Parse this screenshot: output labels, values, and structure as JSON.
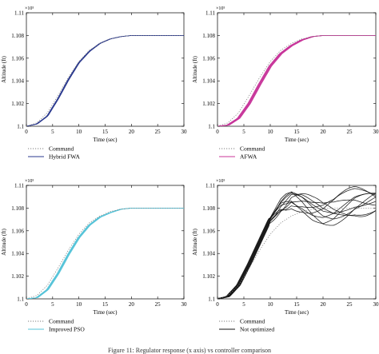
{
  "caption": "Figure 11: Regulator response (x axis) vs controller comparison",
  "chart_data": [
    {
      "type": "line",
      "panel": "top-left",
      "xlabel": "Time (sec)",
      "ylabel": "Altitude (ft)",
      "exponent": "×10⁵",
      "xlim": [
        0,
        30
      ],
      "ylim": [
        1.1,
        1.11
      ],
      "xticks": [
        0,
        5,
        10,
        15,
        20,
        25,
        30
      ],
      "yticks": [
        1.1,
        1.102,
        1.104,
        1.106,
        1.108,
        1.11
      ],
      "legend_position": "bottom-left",
      "series": [
        {
          "name": "Command",
          "style": "dotted",
          "color": "#7f7f7f",
          "kind": "command",
          "x": [
            0,
            2,
            4,
            6,
            8,
            10,
            12,
            14,
            16,
            18,
            20,
            22,
            24,
            26,
            28,
            30
          ],
          "y": [
            1.1,
            1.1003,
            1.1012,
            1.1027,
            1.1043,
            1.1057,
            1.1067,
            1.1073,
            1.1077,
            1.1079,
            1.108,
            1.108,
            1.108,
            1.108,
            1.108,
            1.108
          ]
        },
        {
          "name": "Hybrid FWA",
          "style": "solid",
          "color": "#2b3a8f",
          "kind": "bundle",
          "count": 8,
          "spread": 0.25,
          "x": [
            0,
            2,
            4,
            6,
            8,
            10,
            12,
            14,
            16,
            18,
            20,
            22,
            24,
            26,
            28,
            30
          ],
          "y": [
            1.1,
            1.1002,
            1.1009,
            1.1024,
            1.1041,
            1.1056,
            1.1066,
            1.1073,
            1.1077,
            1.1079,
            1.108,
            1.108,
            1.108,
            1.108,
            1.108,
            1.108
          ]
        }
      ]
    },
    {
      "type": "line",
      "panel": "top-right",
      "xlabel": "Time (sec)",
      "ylabel": "Altitude (ft)",
      "exponent": "×10⁵",
      "xlim": [
        0,
        30
      ],
      "ylim": [
        1.1,
        1.11
      ],
      "xticks": [
        0,
        5,
        10,
        15,
        20,
        25,
        30
      ],
      "yticks": [
        1.1,
        1.102,
        1.104,
        1.106,
        1.108,
        1.11
      ],
      "legend_position": "bottom-left",
      "series": [
        {
          "name": "Command",
          "style": "dotted",
          "color": "#7f7f7f",
          "kind": "command",
          "x": [
            0,
            2,
            4,
            6,
            8,
            10,
            12,
            14,
            16,
            18,
            20,
            22,
            24,
            26,
            28,
            30
          ],
          "y": [
            1.1,
            1.1003,
            1.1012,
            1.1027,
            1.1043,
            1.1057,
            1.1067,
            1.1073,
            1.1077,
            1.1079,
            1.108,
            1.108,
            1.108,
            1.108,
            1.108,
            1.108
          ]
        },
        {
          "name": "AFWA",
          "style": "solid",
          "color": "#c8359a",
          "kind": "bundle",
          "count": 12,
          "spread": 0.55,
          "x": [
            0,
            2,
            4,
            6,
            8,
            10,
            12,
            14,
            16,
            18,
            20,
            22,
            24,
            26,
            28,
            30
          ],
          "y": [
            1.1,
            1.1001,
            1.1007,
            1.102,
            1.1037,
            1.1053,
            1.1064,
            1.1071,
            1.1076,
            1.1079,
            1.108,
            1.108,
            1.108,
            1.108,
            1.108,
            1.108
          ]
        }
      ]
    },
    {
      "type": "line",
      "panel": "bottom-left",
      "xlabel": "Time (sec)",
      "ylabel": "Altitude (ft)",
      "exponent": "×10⁵",
      "xlim": [
        0,
        30
      ],
      "ylim": [
        1.1,
        1.11
      ],
      "xticks": [
        0,
        5,
        10,
        15,
        20,
        25,
        30
      ],
      "yticks": [
        1.1,
        1.102,
        1.104,
        1.106,
        1.108,
        1.11
      ],
      "legend_position": "bottom-left",
      "series": [
        {
          "name": "Command",
          "style": "dotted",
          "color": "#7f7f7f",
          "kind": "command",
          "x": [
            0,
            2,
            4,
            6,
            8,
            10,
            12,
            14,
            16,
            18,
            20,
            22,
            24,
            26,
            28,
            30
          ],
          "y": [
            1.1,
            1.1003,
            1.1012,
            1.1027,
            1.1043,
            1.1057,
            1.1067,
            1.1073,
            1.1077,
            1.1079,
            1.108,
            1.108,
            1.108,
            1.108,
            1.108,
            1.108
          ]
        },
        {
          "name": "Improved PSO",
          "style": "solid",
          "color": "#55c3d8",
          "kind": "bundle",
          "count": 10,
          "spread": 0.4,
          "x": [
            0,
            2,
            4,
            6,
            8,
            10,
            12,
            14,
            16,
            18,
            20,
            22,
            24,
            26,
            28,
            30
          ],
          "y": [
            1.1,
            1.1001,
            1.1008,
            1.1022,
            1.1039,
            1.1054,
            1.1065,
            1.1072,
            1.1076,
            1.1079,
            1.108,
            1.108,
            1.108,
            1.108,
            1.108,
            1.108
          ]
        }
      ]
    },
    {
      "type": "line",
      "panel": "bottom-right",
      "xlabel": "Time (sec)",
      "ylabel": "Altitude (ft)",
      "exponent": "×10⁵",
      "xlim": [
        0,
        30
      ],
      "ylim": [
        1.1,
        1.11
      ],
      "xticks": [
        0,
        5,
        10,
        15,
        20,
        25,
        30
      ],
      "yticks": [
        1.1,
        1.102,
        1.104,
        1.106,
        1.108,
        1.11
      ],
      "legend_position": "bottom-left",
      "series": [
        {
          "name": "Command",
          "style": "dotted",
          "color": "#7f7f7f",
          "kind": "command",
          "x": [
            0,
            2,
            4,
            6,
            8,
            10,
            12,
            14,
            16,
            18,
            20,
            22,
            24,
            26,
            28,
            30
          ],
          "y": [
            1.1,
            1.1003,
            1.1012,
            1.1027,
            1.1043,
            1.1057,
            1.1067,
            1.1073,
            1.1077,
            1.1079,
            1.108,
            1.108,
            1.108,
            1.108,
            1.108,
            1.108
          ]
        },
        {
          "name": "Not optimized",
          "style": "solid",
          "color": "#111111",
          "kind": "oscillating",
          "count": 10,
          "x": [
            0,
            2,
            4,
            6,
            8,
            10,
            12,
            14,
            16,
            18,
            20,
            22,
            24,
            26,
            28,
            30
          ],
          "y": [
            1.1,
            1.1002,
            1.1012,
            1.103,
            1.105,
            1.107,
            1.1082,
            1.1088,
            1.1085,
            1.108,
            1.1077,
            1.1078,
            1.1082,
            1.1086,
            1.1087,
            1.1088
          ]
        }
      ]
    }
  ]
}
